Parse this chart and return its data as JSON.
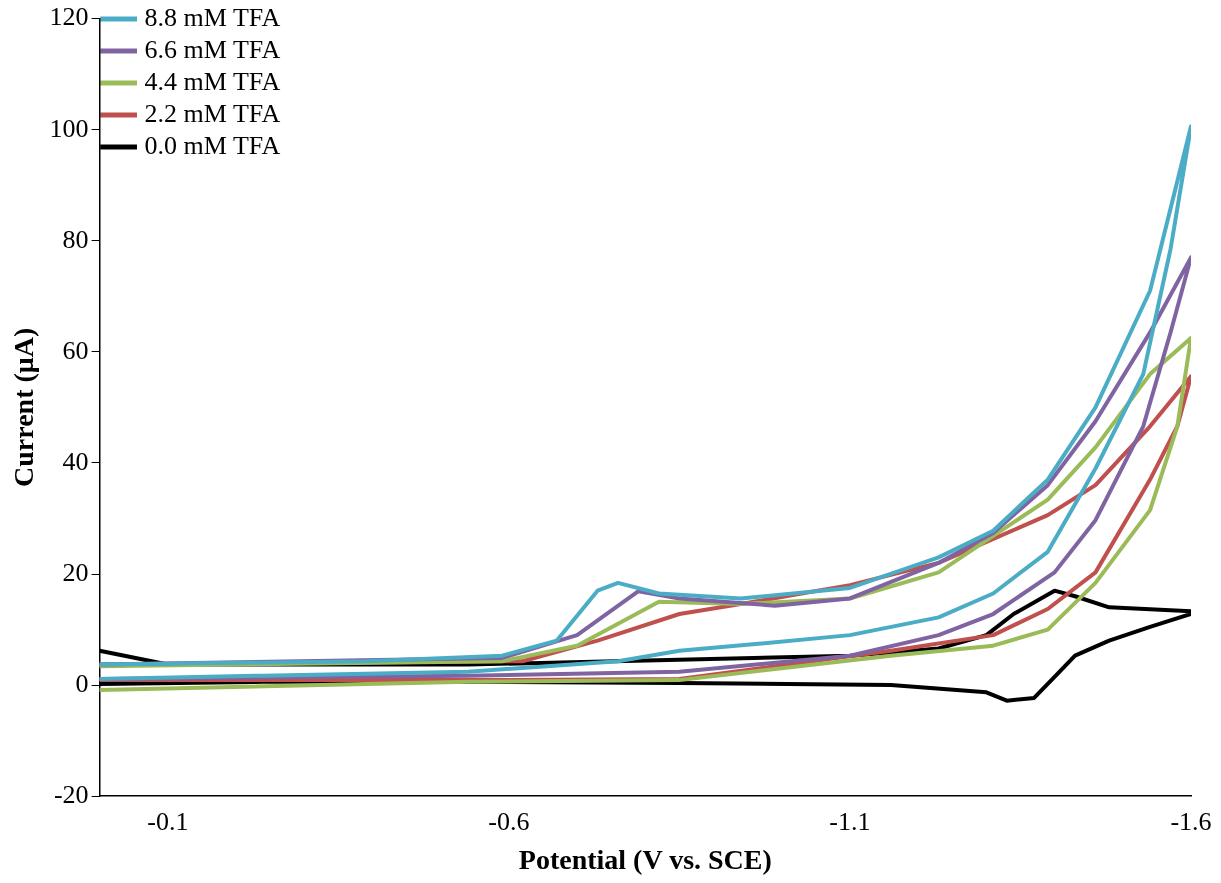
{
  "chart_data": {
    "type": "line",
    "xlabel": "Potential (V vs. SCE)",
    "ylabel": "Current (μA)",
    "xlim": [
      0,
      -1.6
    ],
    "xticks": [
      -0.1,
      -0.6,
      -1.1,
      -1.6
    ],
    "ylim": [
      -20,
      120
    ],
    "yticks": [
      -20,
      0,
      20,
      40,
      60,
      80,
      100,
      120
    ],
    "grid": false,
    "legend": "top left",
    "marker": "none",
    "line_style": "solid",
    "series": [
      {
        "name": "8.8 mM TFA",
        "color": "#4bacc6",
        "x": [
          0,
          -0.39,
          -0.59,
          -0.67,
          -0.73,
          -0.76,
          -0.82,
          -0.94,
          -1.1,
          -1.23,
          -1.31,
          -1.39,
          -1.46,
          -1.54,
          -1.6,
          -1.57,
          -1.53,
          -1.46,
          -1.39,
          -1.31,
          -1.23,
          -1.1,
          -0.97,
          -0.85,
          -0.76,
          -0.54,
          -0.24,
          0
        ],
        "values": [
          3.7,
          4.3,
          5.3,
          8,
          17,
          18.4,
          16.5,
          15.6,
          17.5,
          23,
          27.8,
          37,
          50,
          71,
          100.6,
          78.5,
          56,
          39,
          24,
          16.5,
          12.2,
          9,
          7.5,
          6.2,
          4.3,
          2.4,
          1.7,
          1.1
        ]
      },
      {
        "name": "6.6 mM TFA",
        "color": "#8064a2",
        "x": [
          0,
          -0.59,
          -0.7,
          -0.79,
          -0.85,
          -0.99,
          -1.1,
          -1.23,
          -1.31,
          -1.39,
          -1.46,
          -1.54,
          -1.6,
          -1.57,
          -1.53,
          -1.46,
          -1.4,
          -1.31,
          -1.23,
          -1.1,
          -0.85,
          -0.54,
          0
        ],
        "values": [
          3.7,
          4.9,
          9,
          16.9,
          15.6,
          14.3,
          15.6,
          22,
          27.4,
          36,
          47.5,
          63.5,
          77,
          63.5,
          46.6,
          29.7,
          20.3,
          12.8,
          9,
          5.3,
          2.4,
          1.7,
          1.1
        ]
      },
      {
        "name": "4.4 mM TFA",
        "color": "#9bbb59",
        "x": [
          0,
          -0.59,
          -0.7,
          -0.82,
          -0.94,
          -1.1,
          -1.23,
          -1.39,
          -1.46,
          -1.54,
          -1.6,
          -1.58,
          -1.54,
          -1.46,
          -1.39,
          -1.31,
          -1.16,
          -0.85,
          -0.54,
          0
        ],
        "values": [
          3.4,
          4.3,
          7.1,
          15,
          14.6,
          15.6,
          20.3,
          33.4,
          42.8,
          56,
          62.5,
          46.6,
          31.5,
          18.4,
          10,
          7.1,
          5.3,
          0.9,
          0.6,
          -0.9
        ]
      },
      {
        "name": "2.2 mM TFA",
        "color": "#c0504d",
        "x": [
          0,
          -0.62,
          -0.73,
          -0.85,
          -0.94,
          -1.1,
          -1.23,
          -1.39,
          -1.46,
          -1.54,
          -1.6,
          -1.58,
          -1.54,
          -1.46,
          -1.39,
          -1.31,
          -1.16,
          -0.85,
          -0.54,
          0
        ],
        "values": [
          3.7,
          4.3,
          8,
          12.8,
          14.6,
          18,
          22,
          30.6,
          36,
          46.6,
          55.6,
          46.6,
          37,
          20.3,
          13.7,
          9,
          6.2,
          1.1,
          0.9,
          0.9
        ]
      },
      {
        "name": "0.0 mM TFA",
        "color": "#000000",
        "x": [
          0,
          -0.1,
          -0.54,
          -1.1,
          -1.23,
          -1.3,
          -1.34,
          -1.4,
          -1.43,
          -1.48,
          -1.6,
          -1.6,
          -1.54,
          -1.48,
          -1.43,
          -1.4,
          -1.37,
          -1.33,
          -1.3,
          -1.16,
          -0.85,
          -0.54,
          -0.24,
          0
        ],
        "values": [
          6.2,
          3.7,
          3.7,
          5.3,
          6.6,
          9,
          12.8,
          17,
          16,
          14,
          13.3,
          12.8,
          10.5,
          8,
          5.3,
          1.5,
          -2.3,
          -2.8,
          -1.3,
          0,
          0.4,
          0.6,
          0.6,
          0.2
        ]
      }
    ]
  }
}
